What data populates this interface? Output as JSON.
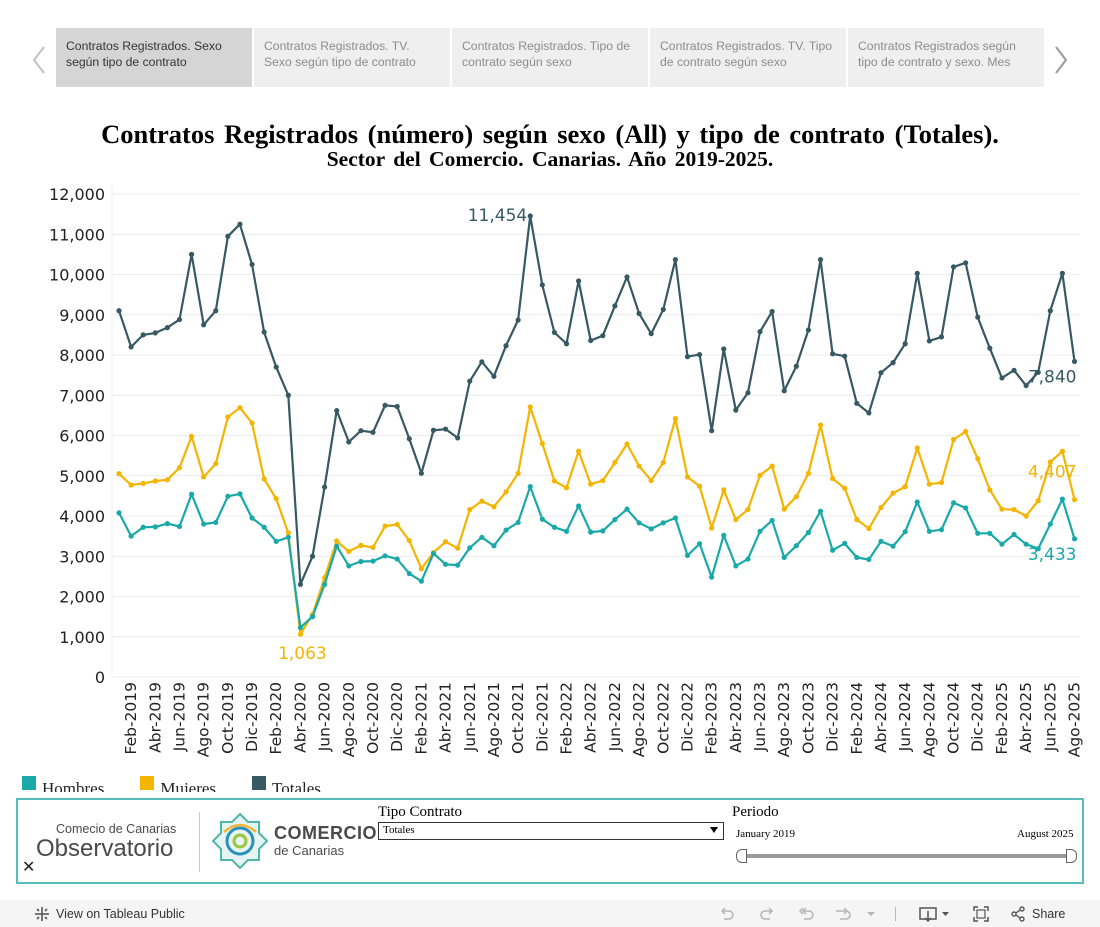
{
  "tabs": [
    {
      "label": "Contratos Registrados. Sexo según tipo de contrato",
      "active": true
    },
    {
      "label": "Contratos Registrados. TV. Sexo según tipo de contrato",
      "active": false
    },
    {
      "label": "Contratos Registrados. Tipo de contrato según sexo",
      "active": false
    },
    {
      "label": "Contratos Registrados. TV. Tipo de contrato según sexo",
      "active": false
    },
    {
      "label": "Contratos Registrados según tipo de contrato y sexo. Mes",
      "active": false
    }
  ],
  "title": {
    "line1": "Contratos Registrados (número) según sexo (All) y tipo de contrato (Totales).",
    "line2": "Sector del Comercio. Canarias. Año 2019-2025."
  },
  "chart_data": {
    "type": "line",
    "title": "Contratos Registrados (número) según sexo (All) y tipo de contrato (Totales). Sector del Comercio. Canarias. Año 2019-2025.",
    "xlabel": "",
    "ylabel": "",
    "ylim": [
      0,
      12000
    ],
    "yticks": [
      0,
      1000,
      2000,
      3000,
      4000,
      5000,
      6000,
      7000,
      8000,
      9000,
      10000,
      11000,
      12000
    ],
    "ytick_labels": [
      "0",
      "1,000",
      "2,000",
      "3,000",
      "4,000",
      "5,000",
      "6,000",
      "7,000",
      "8,000",
      "9,000",
      "10,000",
      "11,000",
      "12,000"
    ],
    "x_tick_labels": [
      "Feb-2019",
      "Abr-2019",
      "Jun-2019",
      "Ago-2019",
      "Oct-2019",
      "Dic-2019",
      "Feb-2020",
      "Abr-2020",
      "Jun-2020",
      "Ago-2020",
      "Oct-2020",
      "Dic-2020",
      "Feb-2021",
      "Abr-2021",
      "Jun-2021",
      "Ago-2021",
      "Oct-2021",
      "Dic-2021",
      "Feb-2022",
      "Abr-2022",
      "Jun-2022",
      "Ago-2022",
      "Oct-2022",
      "Dic-2022",
      "Feb-2023",
      "Abr-2023",
      "Jun-2023",
      "Ago-2023",
      "Oct-2023",
      "Dic-2023",
      "Feb-2024",
      "Abr-2024",
      "Jun-2024",
      "Ago-2024",
      "Oct-2024",
      "Dic-2024",
      "Feb-2025",
      "Abr-2025",
      "Jun-2025",
      "Ago-2025"
    ],
    "x_first_month": "Ene-2019",
    "n_points": 80,
    "series": [
      {
        "name": "Totales",
        "color": "#375963",
        "values": [
          9100,
          8200,
          8500,
          8550,
          8680,
          8880,
          10500,
          8750,
          9100,
          10950,
          11250,
          10250,
          8570,
          7700,
          7000,
          2300,
          3000,
          4720,
          6620,
          5840,
          6120,
          6080,
          6750,
          6720,
          5920,
          5060,
          6130,
          6160,
          5940,
          7350,
          7830,
          7470,
          8230,
          8870,
          11454,
          9740,
          8560,
          8280,
          9840,
          8360,
          8480,
          9220,
          9940,
          9030,
          8530,
          9130,
          10370,
          7960,
          8010,
          6120,
          8150,
          6630,
          7060,
          8580,
          9080,
          7110,
          7720,
          8620,
          10370,
          8030,
          7970,
          6800,
          6560,
          7560,
          7810,
          8280,
          10030,
          8350,
          8450,
          10190,
          10290,
          8940,
          8170,
          7430,
          7620,
          7240,
          7570,
          9100,
          10030,
          7840
        ]
      },
      {
        "name": "Mujeres",
        "color": "#f5b400",
        "values": [
          5050,
          4770,
          4810,
          4870,
          4900,
          5200,
          5980,
          4970,
          5300,
          6460,
          6690,
          6310,
          4920,
          4430,
          3580,
          1063,
          1550,
          2470,
          3380,
          3120,
          3270,
          3220,
          3750,
          3790,
          3390,
          2690,
          3090,
          3360,
          3200,
          4160,
          4370,
          4230,
          4600,
          5060,
          6710,
          5800,
          4870,
          4700,
          5610,
          4790,
          4880,
          5330,
          5790,
          5240,
          4880,
          5330,
          6420,
          4970,
          4740,
          3700,
          4650,
          3910,
          4160,
          5010,
          5240,
          4170,
          4480,
          5060,
          6260,
          4930,
          4690,
          3910,
          3690,
          4210,
          4570,
          4730,
          5690,
          4790,
          4830,
          5900,
          6100,
          5420,
          4650,
          4170,
          4160,
          4000,
          4380,
          5340,
          5610,
          4407
        ]
      },
      {
        "name": "Hombres",
        "color": "#1aa9a9",
        "values": [
          4080,
          3500,
          3720,
          3730,
          3810,
          3740,
          4540,
          3800,
          3840,
          4490,
          4550,
          3950,
          3720,
          3370,
          3470,
          1230,
          1500,
          2300,
          3250,
          2760,
          2870,
          2880,
          3010,
          2930,
          2570,
          2380,
          3070,
          2800,
          2780,
          3210,
          3470,
          3260,
          3650,
          3840,
          4730,
          3920,
          3720,
          3620,
          4250,
          3600,
          3630,
          3910,
          4170,
          3830,
          3680,
          3830,
          3950,
          3020,
          3310,
          2480,
          3520,
          2760,
          2930,
          3620,
          3890,
          2970,
          3260,
          3590,
          4120,
          3150,
          3320,
          2970,
          2920,
          3370,
          3250,
          3610,
          4350,
          3620,
          3660,
          4330,
          4200,
          3570,
          3570,
          3300,
          3540,
          3300,
          3190,
          3800,
          4420,
          3433
        ]
      }
    ],
    "annotations": [
      {
        "series": "Totales",
        "label": "11,454",
        "index": 34,
        "placement": "left"
      },
      {
        "series": "Totales",
        "label": "7,840",
        "index": 79,
        "placement": "below-left"
      },
      {
        "series": "Mujeres",
        "label": "1,063",
        "index": 15,
        "placement": "below"
      },
      {
        "series": "Mujeres",
        "label": "4,407",
        "index": 79,
        "placement": "above-left"
      },
      {
        "series": "Hombres",
        "label": "3,433",
        "index": 79,
        "placement": "below-left"
      }
    ]
  },
  "legend": [
    {
      "label": "Hombres",
      "color": "#1aa9a9"
    },
    {
      "label": "Mujeres",
      "color": "#f5b400"
    },
    {
      "label": "Totales",
      "color": "#375963"
    }
  ],
  "panel": {
    "obs_small": "Comecio de Canarias",
    "obs_big": "Observatorio",
    "com_big": "COMERCIO",
    "com_small": "de Canarias",
    "tipo_label": "Tipo Contrato",
    "tipo_value": "Totales",
    "periodo_label": "Periodo",
    "periodo_start": "January 2019",
    "periodo_end": "August 2025",
    "periodo_start_frac": 0,
    "periodo_end_frac": 1,
    "close_glyph": "✕"
  },
  "toolbar": {
    "view_link": "View on Tableau Public",
    "share": "Share"
  }
}
